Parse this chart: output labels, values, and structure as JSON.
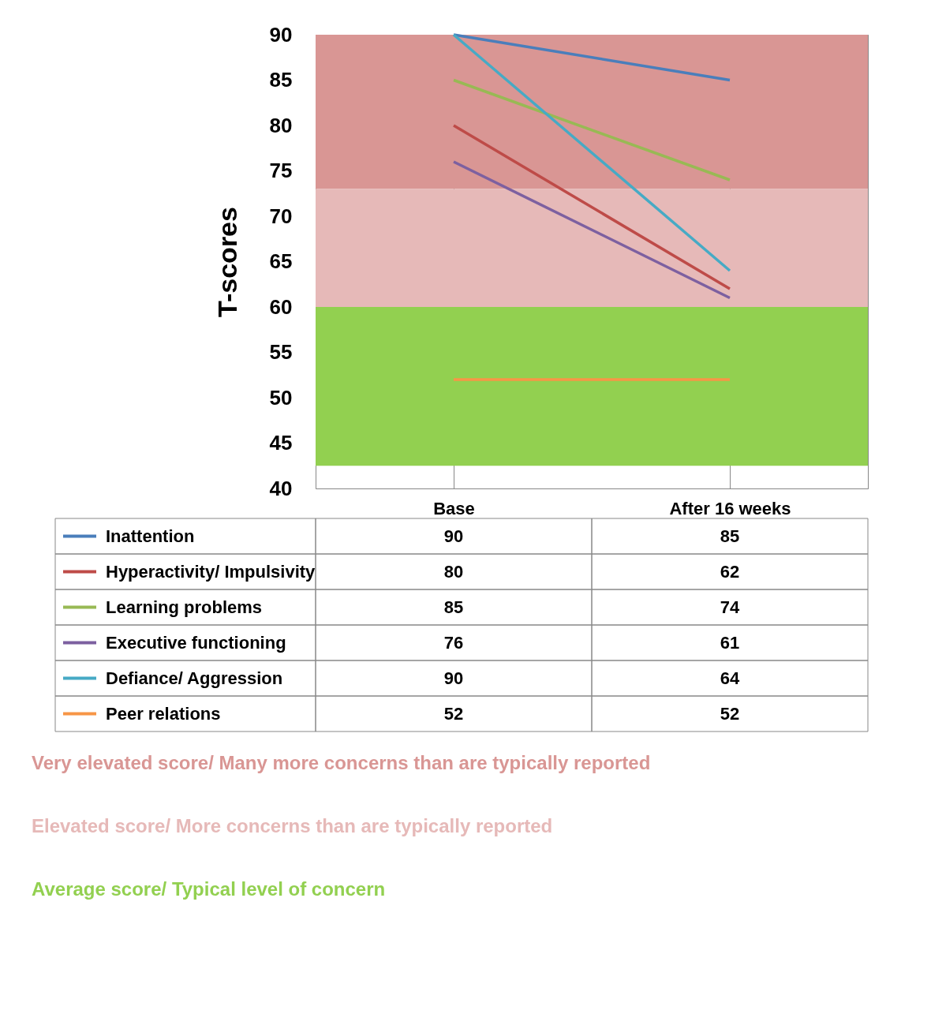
{
  "chart_data": {
    "type": "line",
    "ylabel": "T-scores",
    "categories": [
      "Base",
      "After 16 weeks"
    ],
    "series": [
      {
        "name": "Inattention",
        "color": "#4a7ebb",
        "values": [
          90,
          85
        ]
      },
      {
        "name": "Hyperactivity/ Impulsivity",
        "color": "#be4b48",
        "values": [
          80,
          62
        ]
      },
      {
        "name": "Learning problems",
        "color": "#98b954",
        "values": [
          85,
          74
        ]
      },
      {
        "name": "Executive functioning",
        "color": "#7d60a0",
        "values": [
          76,
          61
        ]
      },
      {
        "name": "Defiance/ Aggression",
        "color": "#46aac5",
        "values": [
          90,
          64
        ]
      },
      {
        "name": "Peer relations",
        "color": "#f79646",
        "values": [
          52,
          52
        ]
      }
    ],
    "ylim": [
      40,
      90
    ],
    "yticks": [
      40,
      45,
      50,
      55,
      60,
      65,
      70,
      75,
      80,
      85,
      90
    ],
    "grid": true,
    "data_labels": true,
    "legend": "bottom left",
    "marker": "none",
    "line_style": "solid",
    "bands": [
      {
        "axis": "y",
        "from": 73,
        "to": 90,
        "label": "Very elevated score/ Many more concerns than are typically reported",
        "color": "#d99694"
      },
      {
        "axis": "y",
        "from": 60,
        "to": 73,
        "label": "Elevated score/ More concerns than are typically reported",
        "color": "#e6b9b8"
      },
      {
        "axis": "y",
        "from": 42.5,
        "to": 60,
        "label": "Average score/ Typical level of concern",
        "color": "#92d050"
      }
    ]
  }
}
